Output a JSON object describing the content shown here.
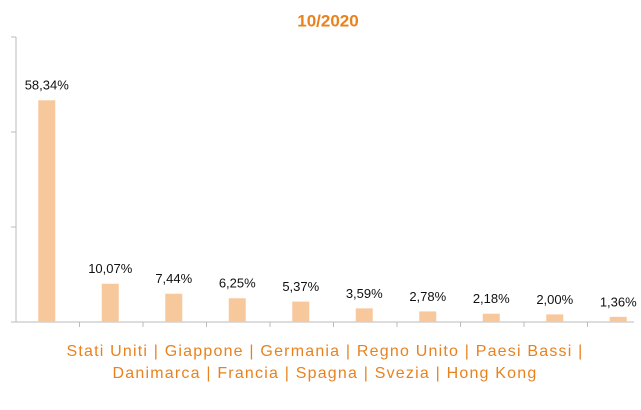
{
  "chart_data": {
    "type": "bar",
    "title": "10/2020",
    "categories": [
      null,
      null,
      null,
      null,
      null,
      null,
      null,
      null,
      null,
      null
    ],
    "values": [
      58.34,
      10.07,
      7.44,
      6.25,
      5.37,
      3.59,
      2.78,
      2.18,
      2.0,
      1.36
    ],
    "value_labels": [
      "58,34%",
      "10,07%",
      "7,44%",
      "6,25%",
      "5,37%",
      "3,59%",
      "2,78%",
      "2,18%",
      "2,00%",
      "1,36%"
    ],
    "color": "#f8c89d",
    "x_label": "Stati Uniti | Giappone | Germania | Regno Unito | Paesi Bassi | Danimarca | Francia | Spagna | Svezia | Hong Kong",
    "ylim": [
      0,
      75
    ],
    "yticks": [
      0,
      25,
      50,
      75
    ],
    "grid": false
  }
}
